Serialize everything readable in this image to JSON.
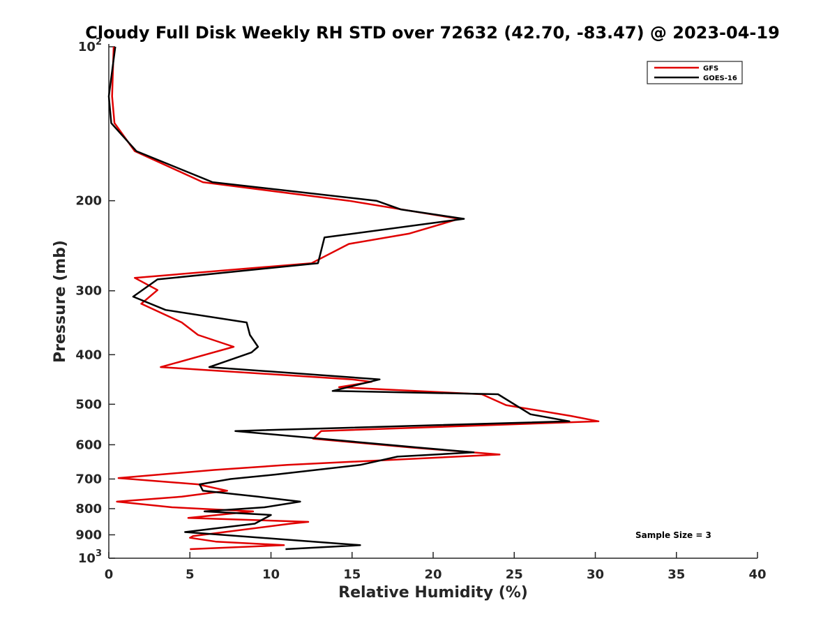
{
  "chart_data": {
    "type": "line",
    "title": "Cloudy Full Disk Weekly RH STD over 72632 (42.70, -83.47) @ 2023-04-19",
    "xlabel": "Relative Humidity (%)",
    "ylabel": "Pressure (mb)",
    "xlim": [
      0,
      40
    ],
    "ylim": [
      100,
      1000
    ],
    "y_scale": "log",
    "y_reversed": true,
    "x_ticks": [
      "0",
      "5",
      "10",
      "15",
      "20",
      "25",
      "30",
      "35",
      "40"
    ],
    "x_tick_values": [
      0,
      5,
      10,
      15,
      20,
      25,
      30,
      35,
      40
    ],
    "y_ticks": [
      {
        "value": 100,
        "base": "10",
        "exp": "2"
      },
      {
        "value": 200,
        "label": "200"
      },
      {
        "value": 300,
        "label": "300"
      },
      {
        "value": 400,
        "label": "400"
      },
      {
        "value": 500,
        "label": "500"
      },
      {
        "value": 600,
        "label": "600"
      },
      {
        "value": 700,
        "label": "700"
      },
      {
        "value": 800,
        "label": "800"
      },
      {
        "value": 900,
        "label": "900"
      },
      {
        "value": 1000,
        "base": "10",
        "exp": "3"
      }
    ],
    "grid": false,
    "legend_position": "top-right",
    "annotation": "Sample Size = 3",
    "series": [
      {
        "name": "GFS",
        "color": "#e00000",
        "points": [
          [
            0.3,
            100
          ],
          [
            0.2,
            125
          ],
          [
            0.35,
            141
          ],
          [
            1.6,
            160
          ],
          [
            5.8,
            184
          ],
          [
            14.8,
            200
          ],
          [
            21.6,
            217
          ],
          [
            18.5,
            232
          ],
          [
            14.8,
            243
          ],
          [
            12.5,
            265
          ],
          [
            1.6,
            283
          ],
          [
            3.0,
            299
          ],
          [
            2.0,
            318
          ],
          [
            4.5,
            346
          ],
          [
            5.5,
            366
          ],
          [
            7.7,
            386
          ],
          [
            3.2,
            423
          ],
          [
            15.0,
            447
          ],
          [
            16.2,
            452
          ],
          [
            14.2,
            463
          ],
          [
            23.0,
            478
          ],
          [
            24.5,
            502
          ],
          [
            28.5,
            527
          ],
          [
            30.2,
            540
          ],
          [
            13.1,
            564
          ],
          [
            12.6,
            584
          ],
          [
            18.8,
            608
          ],
          [
            24.1,
            627
          ],
          [
            11.0,
            657
          ],
          [
            6.5,
            672
          ],
          [
            0.6,
            697
          ],
          [
            5.5,
            717
          ],
          [
            7.3,
            738
          ],
          [
            4.5,
            758
          ],
          [
            0.5,
            775
          ],
          [
            3.9,
            795
          ],
          [
            8.9,
            810
          ],
          [
            4.9,
            834
          ],
          [
            12.3,
            849
          ],
          [
            11.2,
            856
          ],
          [
            5.2,
            905
          ],
          [
            5.0,
            912
          ],
          [
            6.6,
            928
          ],
          [
            10.8,
            943
          ],
          [
            5.0,
            960
          ]
        ]
      },
      {
        "name": "GOES-16",
        "color": "#000000",
        "points": [
          [
            0.4,
            100
          ],
          [
            0.0,
            125
          ],
          [
            0.15,
            141
          ],
          [
            1.7,
            160
          ],
          [
            6.4,
            184
          ],
          [
            16.5,
            200
          ],
          [
            18.0,
            208
          ],
          [
            21.9,
            217
          ],
          [
            13.3,
            236
          ],
          [
            12.9,
            265
          ],
          [
            3.0,
            285
          ],
          [
            1.5,
            308
          ],
          [
            3.5,
            327
          ],
          [
            8.5,
            346
          ],
          [
            8.7,
            366
          ],
          [
            9.2,
            386
          ],
          [
            8.8,
            396
          ],
          [
            6.2,
            423
          ],
          [
            16.7,
            447
          ],
          [
            13.8,
            471
          ],
          [
            24.0,
            478
          ],
          [
            26.0,
            523
          ],
          [
            28.4,
            540
          ],
          [
            7.8,
            564
          ],
          [
            19.2,
            608
          ],
          [
            22.5,
            621
          ],
          [
            17.8,
            633
          ],
          [
            15.5,
            657
          ],
          [
            10.3,
            686
          ],
          [
            7.5,
            700
          ],
          [
            5.6,
            717
          ],
          [
            5.8,
            738
          ],
          [
            9.2,
            758
          ],
          [
            11.8,
            775
          ],
          [
            9.6,
            795
          ],
          [
            5.9,
            810
          ],
          [
            10.0,
            823
          ],
          [
            9.0,
            856
          ],
          [
            4.7,
            889
          ],
          [
            15.5,
            943
          ],
          [
            10.9,
            960
          ]
        ]
      }
    ]
  }
}
